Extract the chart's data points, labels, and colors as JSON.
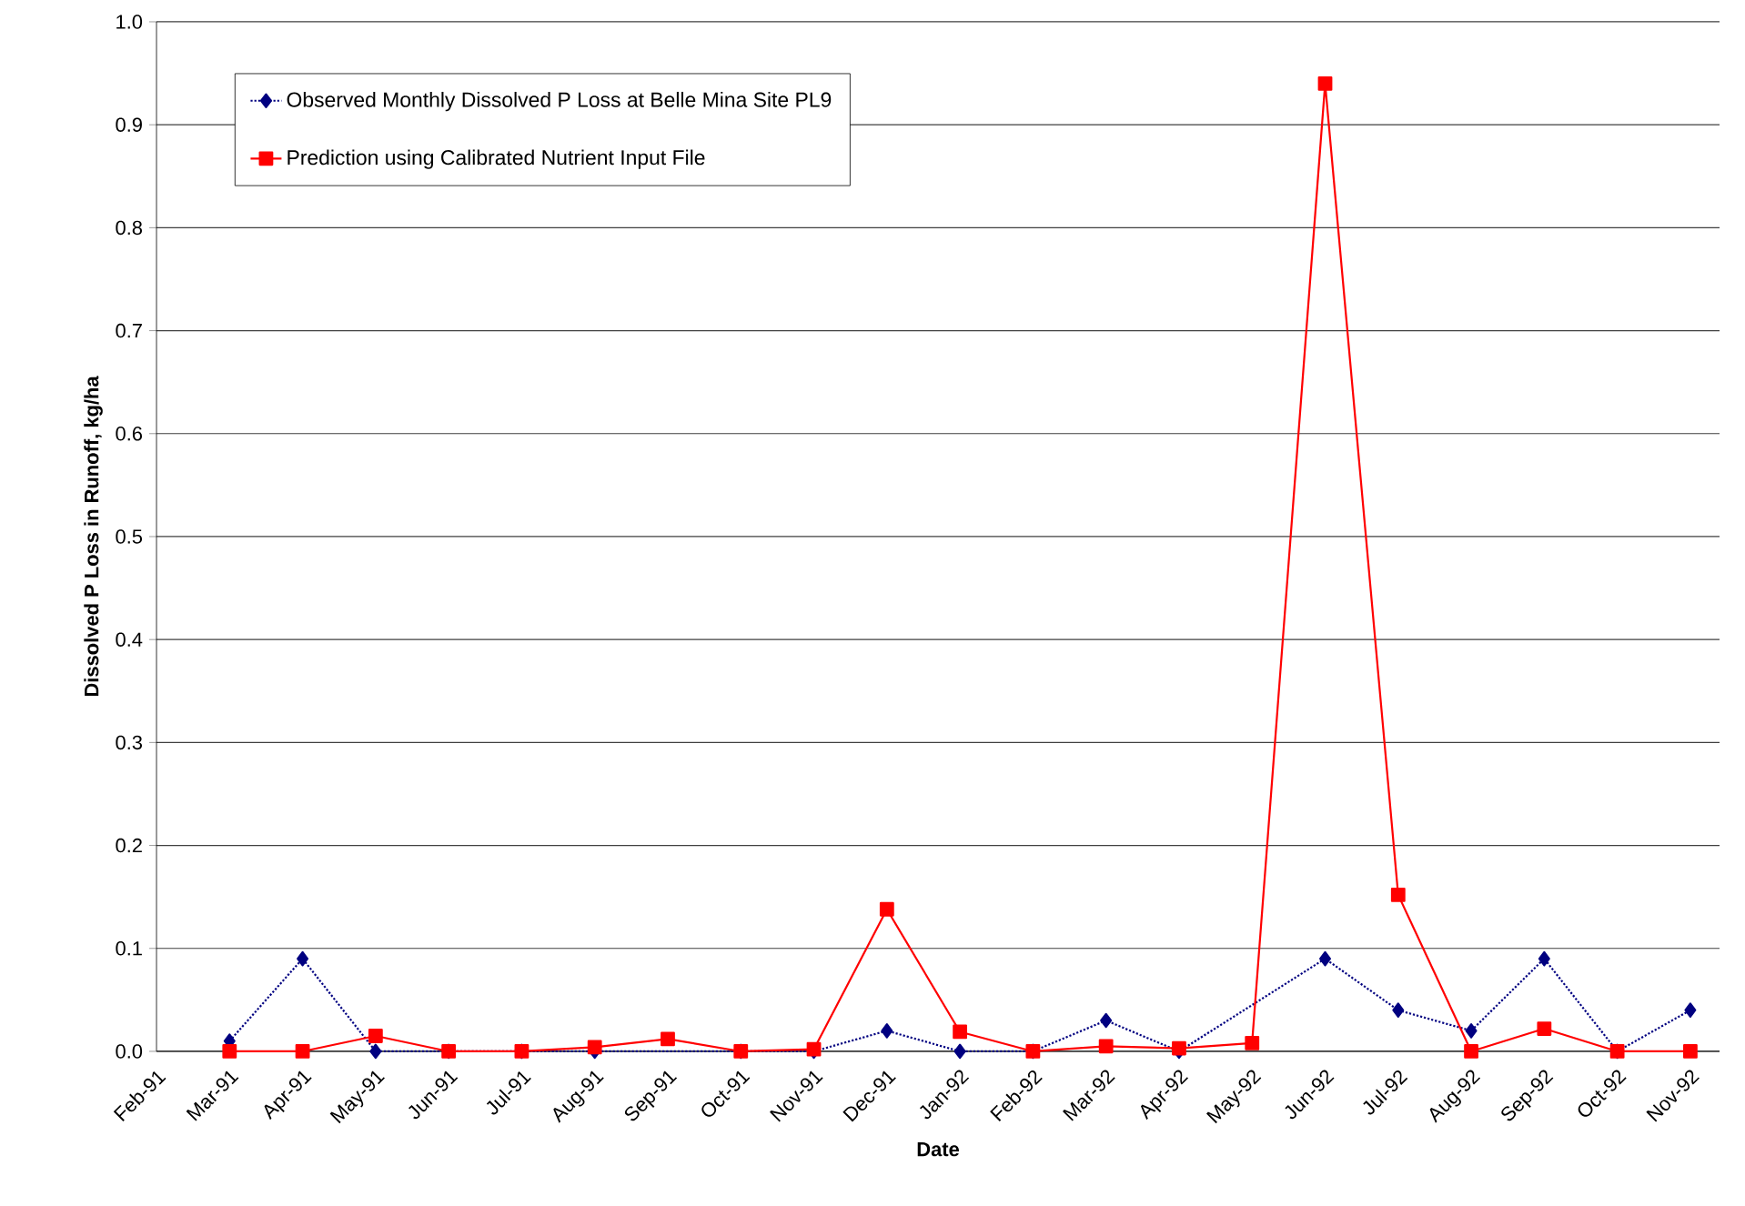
{
  "chart_data": {
    "type": "line",
    "xlabel": "Date",
    "ylabel": "Dissolved P Loss in Runoff, kg/ha",
    "categories": [
      "Feb-91",
      "Mar-91",
      "Apr-91",
      "May-91",
      "Jun-91",
      "Jul-91",
      "Aug-91",
      "Sep-91",
      "Oct-91",
      "Nov-91",
      "Dec-91",
      "Jan-92",
      "Feb-92",
      "Mar-92",
      "Apr-92",
      "May-92",
      "Jun-92",
      "Jul-92",
      "Aug-92",
      "Sep-92",
      "Oct-92",
      "Nov-92"
    ],
    "series": [
      {
        "name": "Observed Monthly Dissolved P Loss at Belle Mina Site PL9",
        "color": "#000080",
        "marker": "diamond",
        "line_style": "dotted",
        "values": [
          null,
          0.01,
          0.09,
          0,
          0,
          0,
          0,
          null,
          0,
          0,
          0.02,
          0,
          0,
          0.03,
          0,
          null,
          0.09,
          0.04,
          0.02,
          0.09,
          0,
          0.04
        ]
      },
      {
        "name": "Prediction using Calibrated Nutrient Input File",
        "color": "#ff0000",
        "marker": "square",
        "line_style": "solid",
        "values": [
          null,
          0,
          0,
          0.015,
          0,
          0,
          0.004,
          0.012,
          0,
          0.002,
          0.138,
          0.019,
          0,
          0.005,
          0.003,
          0.008,
          0.94,
          0.152,
          0,
          0.022,
          0,
          0
        ]
      }
    ],
    "ylim": [
      0,
      1
    ],
    "yticks": [
      {
        "value": 0,
        "label": "0.0"
      },
      0.1,
      0.2,
      0.3,
      0.4,
      0.5,
      0.6,
      0.7,
      0.8,
      0.9,
      {
        "value": 1,
        "label": "1.0"
      }
    ],
    "grid": "y",
    "legend": "top left"
  }
}
